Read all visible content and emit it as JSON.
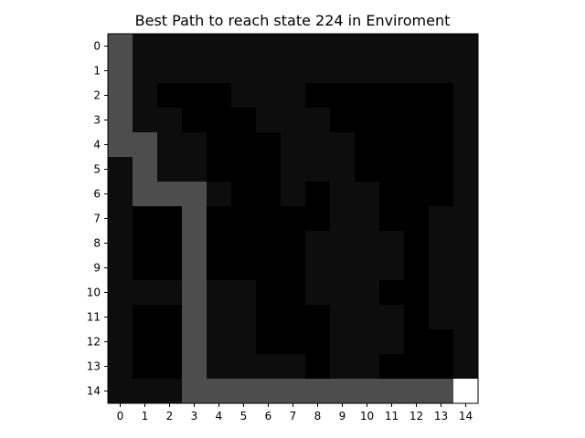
{
  "chart_data": {
    "type": "heatmap",
    "title": "Best Path to reach state 224 in Enviroment",
    "xlabel": "",
    "ylabel": "",
    "x_ticks": [
      "0",
      "1",
      "2",
      "3",
      "4",
      "5",
      "6",
      "7",
      "8",
      "9",
      "10",
      "11",
      "12",
      "13",
      "14"
    ],
    "y_ticks": [
      "0",
      "1",
      "2",
      "3",
      "4",
      "5",
      "6",
      "7",
      "8",
      "9",
      "10",
      "11",
      "12",
      "13",
      "14"
    ],
    "colormap": "gray",
    "grid": false,
    "legend": "none",
    "path_value": 3,
    "goal_value": 10,
    "values": [
      [
        3,
        1,
        1,
        1,
        1,
        1,
        1,
        1,
        1,
        1,
        1,
        1,
        1,
        1,
        1
      ],
      [
        3,
        1,
        1,
        1,
        1,
        1,
        1,
        1,
        1,
        1,
        1,
        1,
        1,
        1,
        1
      ],
      [
        3,
        1,
        0,
        0,
        0,
        1,
        1,
        1,
        0,
        0,
        0,
        0,
        0,
        0,
        1
      ],
      [
        3,
        1,
        1,
        0,
        0,
        0,
        1,
        1,
        1,
        0,
        0,
        0,
        0,
        0,
        1
      ],
      [
        3,
        3,
        1,
        1,
        0,
        0,
        0,
        1,
        1,
        1,
        0,
        0,
        0,
        0,
        1
      ],
      [
        1,
        3,
        1,
        1,
        0,
        0,
        0,
        1,
        1,
        1,
        0,
        0,
        0,
        0,
        1
      ],
      [
        1,
        3,
        3,
        3,
        1,
        0,
        0,
        1,
        0,
        1,
        1,
        0,
        0,
        0,
        1
      ],
      [
        1,
        0,
        0,
        3,
        0,
        0,
        0,
        0,
        0,
        1,
        1,
        0,
        0,
        1,
        1
      ],
      [
        1,
        0,
        0,
        3,
        0,
        0,
        0,
        0,
        1,
        1,
        1,
        1,
        0,
        1,
        1
      ],
      [
        1,
        0,
        0,
        3,
        0,
        0,
        0,
        0,
        1,
        1,
        1,
        1,
        0,
        1,
        1
      ],
      [
        1,
        1,
        1,
        3,
        1,
        1,
        0,
        0,
        1,
        1,
        1,
        0,
        0,
        1,
        1
      ],
      [
        1,
        0,
        0,
        3,
        1,
        1,
        0,
        0,
        0,
        1,
        1,
        1,
        0,
        1,
        1
      ],
      [
        1,
        0,
        0,
        3,
        1,
        1,
        0,
        0,
        0,
        1,
        1,
        1,
        0,
        0,
        1
      ],
      [
        1,
        0,
        0,
        3,
        1,
        1,
        1,
        1,
        0,
        1,
        1,
        0,
        0,
        0,
        1
      ],
      [
        1,
        1,
        1,
        3,
        3,
        3,
        3,
        3,
        3,
        3,
        3,
        3,
        3,
        3,
        10
      ]
    ],
    "value_colors": {
      "0": "#000000",
      "1": "#0d0d0d",
      "3": "#4d4d4d",
      "10": "#ffffff"
    }
  }
}
